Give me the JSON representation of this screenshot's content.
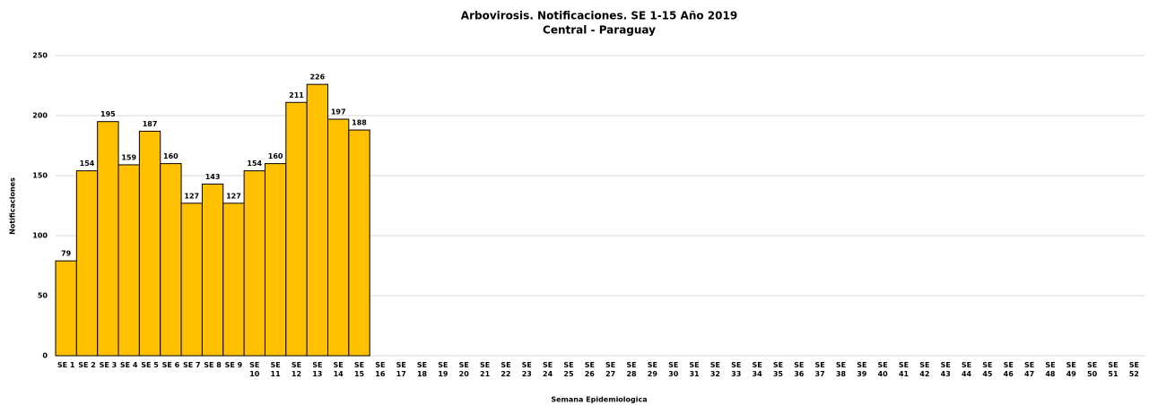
{
  "chart_data": {
    "type": "bar",
    "title": "Arbovirosis. Notificaciones. SE 1-15 Año 2019",
    "subtitle": "Central - Paraguay",
    "x_label": "Semana Epidemiologica",
    "y_label": "Notificaciones",
    "categories": [
      "SE 1",
      "SE 2",
      "SE 3",
      "SE 4",
      "SE 5",
      "SE 6",
      "SE 7",
      "SE 8",
      "SE 9",
      "SE 10",
      "SE 11",
      "SE 12",
      "SE 13",
      "SE 14",
      "SE 15",
      "SE 16",
      "SE 17",
      "SE 18",
      "SE 19",
      "SE 20",
      "SE 21",
      "SE 22",
      "SE 23",
      "SE 24",
      "SE 25",
      "SE 26",
      "SE 27",
      "SE 28",
      "SE 29",
      "SE 30",
      "SE 31",
      "SE 32",
      "SE 33",
      "SE 34",
      "SE 35",
      "SE 36",
      "SE 37",
      "SE 38",
      "SE 39",
      "SE 40",
      "SE 41",
      "SE 42",
      "SE 43",
      "SE 44",
      "SE 45",
      "SE 46",
      "SE 47",
      "SE 48",
      "SE 49",
      "SE 50",
      "SE 51",
      "SE 52"
    ],
    "values": [
      79,
      154,
      195,
      159,
      187,
      160,
      127,
      143,
      127,
      154,
      160,
      211,
      226,
      197,
      188,
      null,
      null,
      null,
      null,
      null,
      null,
      null,
      null,
      null,
      null,
      null,
      null,
      null,
      null,
      null,
      null,
      null,
      null,
      null,
      null,
      null,
      null,
      null,
      null,
      null,
      null,
      null,
      null,
      null,
      null,
      null,
      null,
      null,
      null,
      null,
      null,
      null
    ],
    "color": "#ffc000",
    "ylim": [
      0,
      250
    ],
    "yticks": [
      0,
      50,
      100,
      150,
      200,
      250
    ],
    "grid": true
  }
}
